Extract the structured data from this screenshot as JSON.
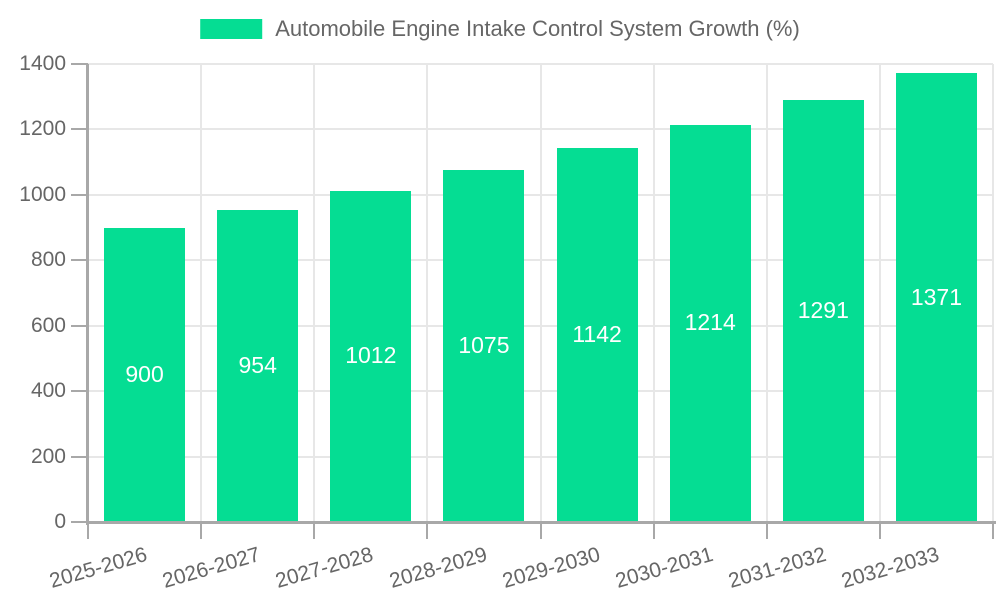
{
  "chart_data": {
    "type": "bar",
    "title": "Automobile Engine Intake Control System Growth (%)",
    "legend_position": "top",
    "categories": [
      "2025-2026",
      "2026-2027",
      "2027-2028",
      "2028-2029",
      "2029-2030",
      "2030-2031",
      "2031-2032",
      "2032-2033"
    ],
    "values": [
      900,
      954,
      1012,
      1075,
      1142,
      1214,
      1291,
      1371
    ],
    "xlabel": "",
    "ylabel": "",
    "ylim": [
      0,
      1400
    ],
    "yticks": [
      0,
      200,
      400,
      600,
      800,
      1000,
      1200,
      1400
    ],
    "grid": true,
    "x_label_rotation_deg": -16,
    "colors": {
      "bar": "#05DD93",
      "bar_label": "#FFFFFF",
      "axis": "#A8A8A8",
      "grid": "#E7E7E7",
      "text": "#666666",
      "background": "#FFFFFF"
    }
  }
}
